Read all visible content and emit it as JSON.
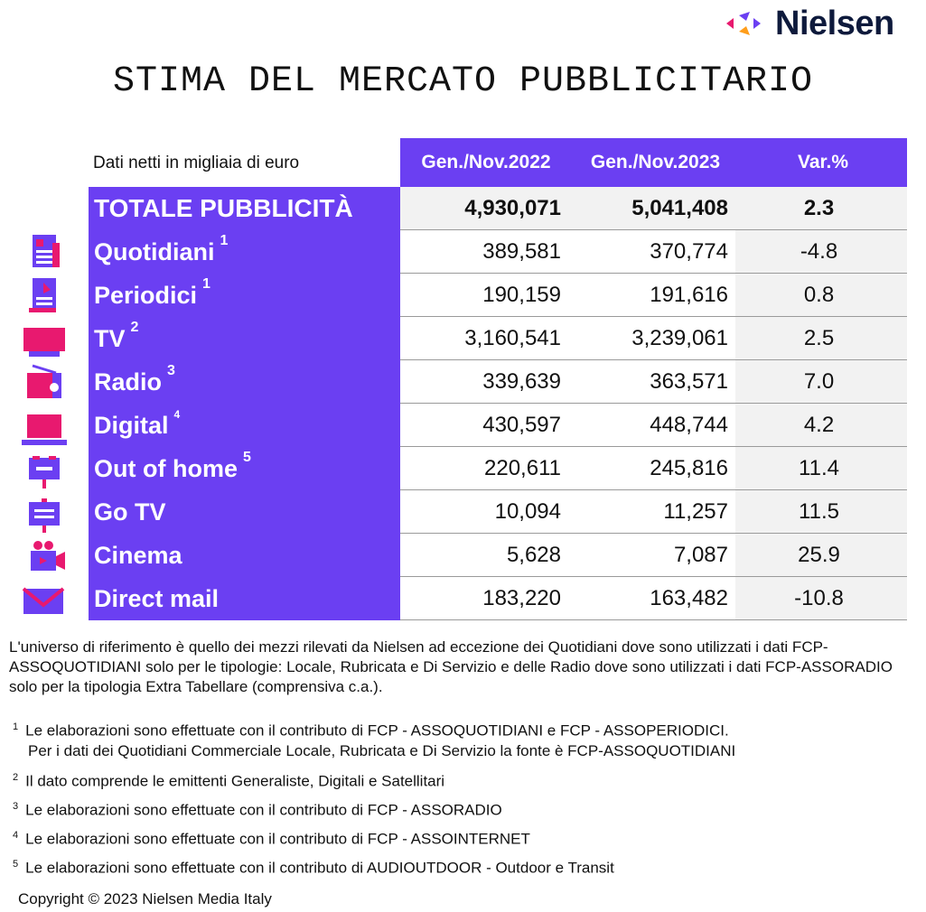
{
  "brand": {
    "name": "Nielsen"
  },
  "title": "STIMA DEL MERCATO PUBBLICITARIO",
  "table": {
    "units_label": "Dati netti in migliaia di euro",
    "headers": [
      "Gen./Nov.2022",
      "Gen./Nov.2023",
      "Var.%"
    ],
    "rows": [
      {
        "label": "TOTALE PUBBLICITÀ",
        "sup": "",
        "v2022": "4,930,071",
        "v2023": "5,041,408",
        "var": "2.3"
      },
      {
        "label": "Quotidiani",
        "sup": "1",
        "v2022": "389,581",
        "v2023": "370,774",
        "var": "-4.8",
        "icon": "newspaper-icon"
      },
      {
        "label": "Periodici",
        "sup": "1",
        "v2022": "190,159",
        "v2023": "191,616",
        "var": "0.8",
        "icon": "magazine-icon"
      },
      {
        "label": "TV",
        "sup": "2",
        "v2022": "3,160,541",
        "v2023": "3,239,061",
        "var": "2.5",
        "icon": "tv-icon"
      },
      {
        "label": "Radio",
        "sup": "3",
        "v2022": "339,639",
        "v2023": "363,571",
        "var": "7.0",
        "icon": "radio-icon"
      },
      {
        "label": "Digital",
        "sup": "4",
        "v2022": "430,597",
        "v2023": "448,744",
        "var": "4.2",
        "icon": "laptop-icon"
      },
      {
        "label": "Out of home",
        "sup": "5",
        "v2022": "220,611",
        "v2023": "245,816",
        "var": "11.4",
        "icon": "billboard-icon"
      },
      {
        "label": "Go TV",
        "sup": "",
        "v2022": "10,094",
        "v2023": "11,257",
        "var": "11.5",
        "icon": "screen-stand-icon"
      },
      {
        "label": "Cinema",
        "sup": "",
        "v2022": "5,628",
        "v2023": "7,087",
        "var": "25.9",
        "icon": "movie-camera-icon"
      },
      {
        "label": "Direct mail",
        "sup": "",
        "v2022": "183,220",
        "v2023": "163,482",
        "var": "-10.8",
        "icon": "envelope-icon"
      }
    ]
  },
  "note": "L'universo di riferimento è quello dei mezzi rilevati da Nielsen ad eccezione dei Quotidiani dove sono utilizzati i dati FCP-ASSOQUOTIDIANI solo per le tipologie: Locale, Rubricata e Di Servizio e delle Radio dove sono utilizzati i dati FCP-ASSORADIO solo per la tipologia Extra Tabellare (comprensiva c.a.).",
  "footnotes": [
    {
      "num": "1",
      "text": "Le elaborazioni sono effettuate con il contributo di FCP - ASSOQUOTIDIANI e FCP - ASSOPERIODICI.",
      "text2": "Per i dati dei Quotidiani Commerciale Locale, Rubricata e Di Servizio la fonte è  FCP-ASSOQUOTIDIANI"
    },
    {
      "num": "2",
      "text": "Il dato comprende le emittenti Generaliste, Digitali e Satellitari"
    },
    {
      "num": "3",
      "text": "Le elaborazioni sono effettuate con il contributo di FCP - ASSORADIO"
    },
    {
      "num": "4",
      "text": "Le elaborazioni sono effettuate con il contributo di FCP - ASSOINTERNET"
    },
    {
      "num": "5",
      "text": "Le elaborazioni sono effettuate con il contributo di AUDIOUTDOOR - Outdoor e Transit"
    }
  ],
  "copyright": "Copyright © 2023 Nielsen Media Italy",
  "colors": {
    "header_purple": "#6b3ff2",
    "icon_purple": "#6b3ff2",
    "icon_pink": "#e8196f",
    "logo_navy": "#0e1a3c"
  }
}
